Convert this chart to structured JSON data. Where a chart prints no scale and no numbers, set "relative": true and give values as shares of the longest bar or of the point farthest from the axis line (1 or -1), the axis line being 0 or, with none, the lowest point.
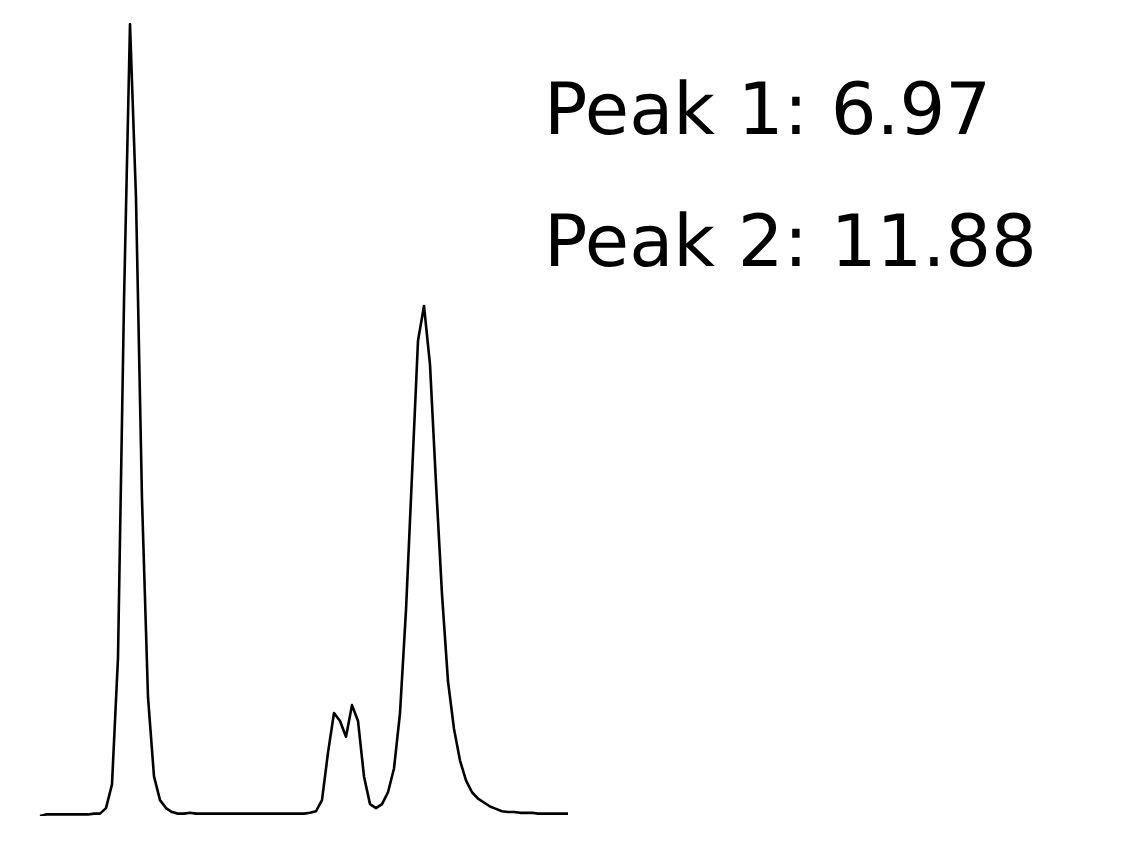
{
  "chart_data": {
    "type": "line",
    "relative": true,
    "marker": "none",
    "legend": false,
    "annotations": [
      "Peak 1: 6.97",
      "Peak 2: 11.88"
    ],
    "categories": [
      null,
      null,
      null,
      null,
      null,
      null,
      null,
      null,
      null,
      null,
      null,
      null,
      null,
      null,
      null,
      null,
      null,
      null,
      null,
      null,
      null,
      null,
      null,
      null,
      null,
      null,
      null,
      null,
      null,
      null,
      null,
      null,
      null,
      null,
      null,
      null,
      null,
      null,
      null,
      null,
      null,
      null,
      null,
      null,
      null,
      null,
      null,
      null,
      null,
      null,
      null,
      null,
      null,
      null,
      null,
      null,
      null,
      null,
      null,
      null,
      null,
      null,
      null,
      null,
      null,
      null,
      null,
      null,
      null,
      null,
      null,
      null,
      null,
      null,
      null,
      null,
      null,
      null,
      null,
      null,
      null,
      null,
      null,
      null,
      null,
      null,
      null,
      null,
      null
    ],
    "series": [
      {
        "color": "#000000",
        "values": [
          0,
          0.002,
          0.002,
          0.002,
          0.002,
          0.002,
          0.002,
          0.002,
          0.002,
          0.003,
          0.003,
          0.01,
          0.04,
          0.2,
          0.65,
          1,
          0.78,
          0.4,
          0.15,
          0.05,
          0.02,
          0.01,
          0.005,
          0.003,
          0.003,
          0.004,
          0.003,
          0.003,
          0.003,
          0.003,
          0.003,
          0.003,
          0.003,
          0.003,
          0.003,
          0.003,
          0.003,
          0.003,
          0.003,
          0.003,
          0.003,
          0.003,
          0.003,
          0.003,
          0.003,
          0.004,
          0.006,
          0.02,
          0.08,
          0.13,
          0.12,
          0.1,
          0.14,
          0.12,
          0.05,
          0.015,
          0.01,
          0.015,
          0.03,
          0.06,
          0.13,
          0.26,
          0.43,
          0.6,
          0.644,
          0.57,
          0.42,
          0.28,
          0.17,
          0.11,
          0.07,
          0.045,
          0.03,
          0.022,
          0.017,
          0.012,
          0.009,
          0.006,
          0.005,
          0.005,
          0.004,
          0.004,
          0.004,
          0.003,
          0.003,
          0.003,
          0.003,
          0.003,
          0.003
        ]
      }
    ]
  }
}
